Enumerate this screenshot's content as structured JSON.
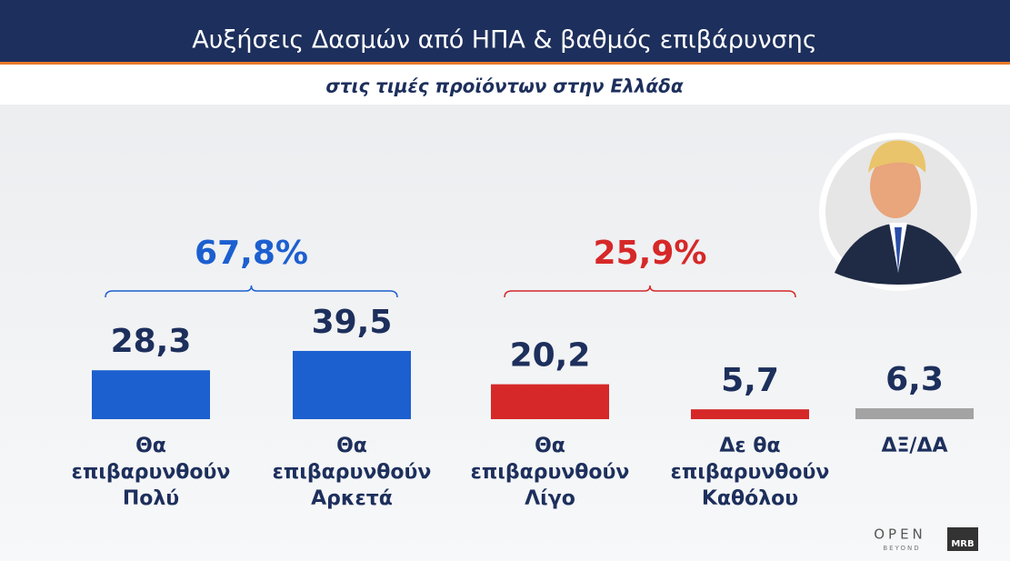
{
  "chart_data": {
    "type": "bar",
    "title": "Αυξήσεις Δασμών από ΗΠΑ & βαθμός επιβάρυνσης",
    "subtitle": "στις τιμές προϊόντων στην Ελλάδα",
    "categories": [
      [
        "Θα",
        "επιβαρυνθούν",
        "Πολύ"
      ],
      [
        "Θα",
        "επιβαρυνθούν",
        "Αρκετά"
      ],
      [
        "Θα",
        "επιβαρυνθούν",
        "Λίγο"
      ],
      [
        "Δε θα",
        "επιβαρυνθούν",
        "Καθόλου"
      ],
      [
        "ΔΞ/ΔΑ"
      ]
    ],
    "values": [
      28.3,
      39.5,
      20.2,
      5.7,
      6.3
    ],
    "value_labels": [
      "28,3",
      "39,5",
      "20,2",
      "5,7",
      "6,3"
    ],
    "colors": [
      "#1c5fcf",
      "#1c5fcf",
      "#d62828",
      "#d62828",
      "#a3a3a3"
    ],
    "groups": [
      {
        "value": 67.8,
        "label": "67,8%",
        "color": "#1c5fcf"
      },
      {
        "value": 25.9,
        "label": "25,9%",
        "color": "#d62828"
      }
    ],
    "logos": [
      "OPEN",
      "BEYOND",
      "MRB"
    ]
  }
}
